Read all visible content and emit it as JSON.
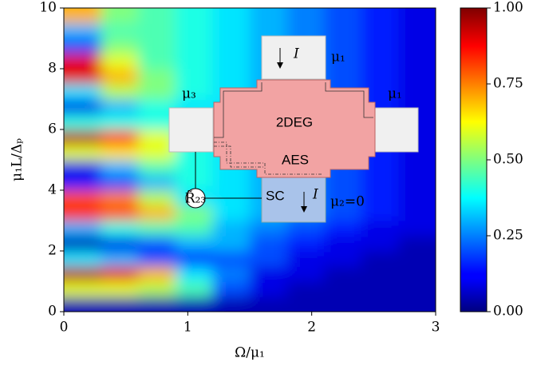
{
  "chart_data": {
    "type": "heatmap",
    "xlabel": "Ω/μ₁",
    "ylabel": "μ₁L/Δₚ",
    "xlim": [
      0,
      3
    ],
    "ylim": [
      0,
      10
    ],
    "xticks": [
      0,
      1,
      2,
      3
    ],
    "yticks": [
      0,
      2,
      4,
      6,
      8,
      10
    ],
    "x": [
      0.15,
      0.45,
      0.75,
      1.05,
      1.35,
      1.65,
      1.95,
      2.25,
      2.55,
      2.85
    ],
    "y": [
      0.25,
      0.75,
      1.25,
      1.75,
      2.25,
      2.75,
      3.25,
      3.75,
      4.25,
      4.75,
      5.25,
      5.75,
      6.25,
      6.75,
      7.25,
      7.75,
      8.25,
      8.75,
      9.25,
      9.75
    ],
    "z": [
      [
        0.05,
        0.05,
        0.05,
        0.05,
        0.05,
        0.05,
        0.05,
        0.05,
        0.05,
        0.05
      ],
      [
        0.6,
        0.6,
        0.55,
        0.45,
        0.2,
        0.1,
        0.05,
        0.05,
        0.05,
        0.05
      ],
      [
        0.95,
        0.9,
        0.7,
        0.35,
        0.25,
        0.1,
        0.1,
        0.05,
        0.05,
        0.05
      ],
      [
        0.35,
        0.3,
        0.2,
        0.15,
        0.2,
        0.2,
        0.1,
        0.1,
        0.05,
        0.05
      ],
      [
        0.05,
        0.1,
        0.2,
        0.3,
        0.3,
        0.2,
        0.15,
        0.1,
        0.1,
        0.05
      ],
      [
        0.3,
        0.4,
        0.45,
        0.45,
        0.3,
        0.25,
        0.2,
        0.15,
        0.1,
        0.1
      ],
      [
        0.85,
        0.8,
        0.7,
        0.5,
        0.35,
        0.3,
        0.25,
        0.2,
        0.15,
        0.1
      ],
      [
        0.8,
        0.75,
        0.55,
        0.35,
        0.35,
        0.3,
        0.25,
        0.2,
        0.15,
        0.1
      ],
      [
        0.15,
        0.2,
        0.3,
        0.4,
        0.35,
        0.3,
        0.25,
        0.2,
        0.15,
        0.1
      ],
      [
        0.1,
        0.3,
        0.45,
        0.4,
        0.35,
        0.3,
        0.25,
        0.2,
        0.15,
        0.1
      ],
      [
        0.6,
        0.65,
        0.6,
        0.4,
        0.35,
        0.3,
        0.25,
        0.2,
        0.15,
        0.1
      ],
      [
        0.95,
        0.85,
        0.6,
        0.4,
        0.35,
        0.3,
        0.25,
        0.2,
        0.15,
        0.1
      ],
      [
        0.4,
        0.4,
        0.4,
        0.4,
        0.35,
        0.3,
        0.25,
        0.2,
        0.15,
        0.1
      ],
      [
        0.1,
        0.3,
        0.4,
        0.35,
        0.35,
        0.3,
        0.25,
        0.2,
        0.15,
        0.1
      ],
      [
        0.35,
        0.55,
        0.5,
        0.4,
        0.35,
        0.3,
        0.25,
        0.2,
        0.15,
        0.1
      ],
      [
        0.9,
        0.7,
        0.5,
        0.4,
        0.35,
        0.3,
        0.25,
        0.2,
        0.15,
        0.1
      ],
      [
        0.9,
        0.6,
        0.45,
        0.4,
        0.35,
        0.3,
        0.25,
        0.2,
        0.15,
        0.1
      ],
      [
        0.2,
        0.5,
        0.45,
        0.4,
        0.35,
        0.3,
        0.25,
        0.2,
        0.15,
        0.1
      ],
      [
        0.3,
        0.45,
        0.45,
        0.4,
        0.35,
        0.3,
        0.25,
        0.2,
        0.15,
        0.1
      ],
      [
        0.7,
        0.5,
        0.45,
        0.4,
        0.35,
        0.3,
        0.25,
        0.2,
        0.15,
        0.1
      ]
    ],
    "colormap": "jet",
    "zlim": [
      0,
      1
    ],
    "zticks": [
      {
        "value": 0,
        "label": "0.00"
      },
      {
        "value": 0.25,
        "label": "0.25"
      },
      {
        "value": 0.5,
        "label": "0.50"
      },
      {
        "value": 0.75,
        "label": "0.75"
      },
      {
        "value": 1,
        "label": "1.00"
      }
    ],
    "annotations": {
      "top_current": "I",
      "top_mu": "μ₁",
      "left_mu": "μ₃",
      "right_mu": "μ₁",
      "center": "2DEG",
      "edge": "AES",
      "sc": "SC",
      "sc_current": "I",
      "sc_mu": "μ₂=0",
      "resistance": "R̃₂₃"
    }
  }
}
